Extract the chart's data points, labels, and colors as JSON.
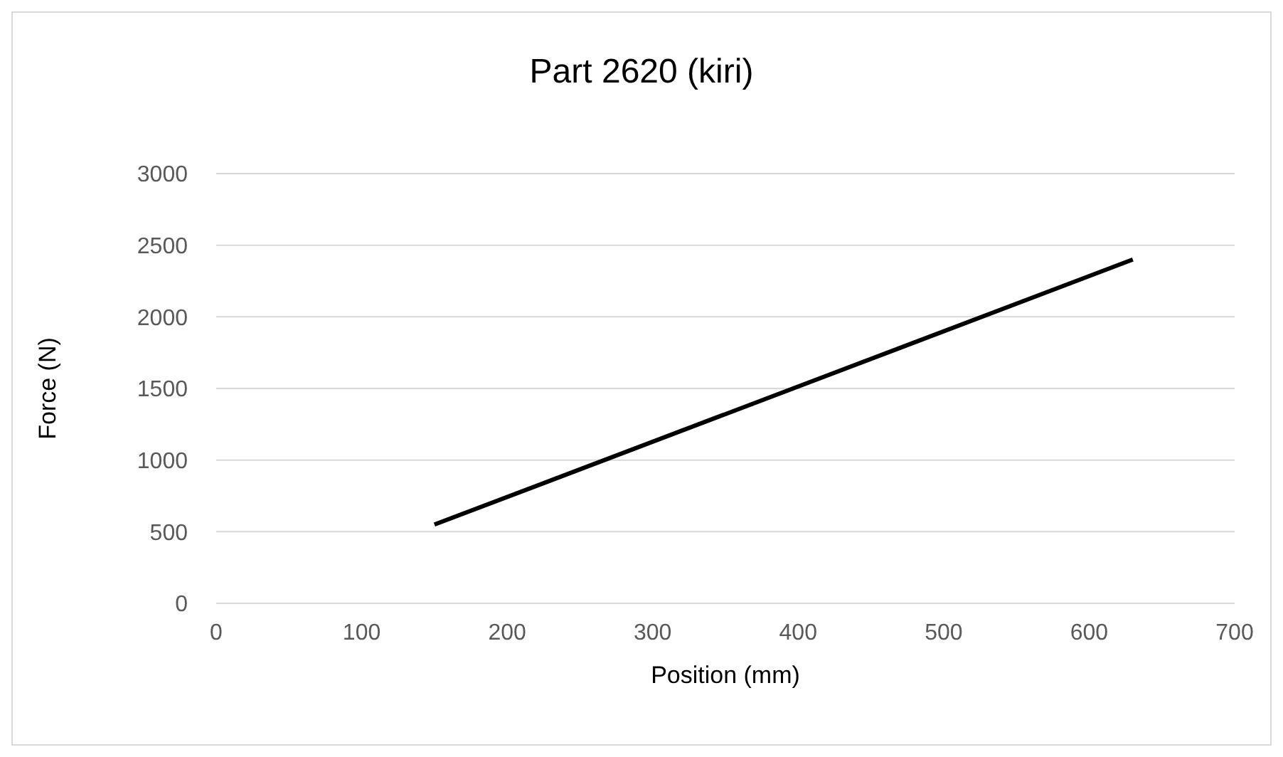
{
  "chart_data": {
    "type": "line",
    "title": "Part 2620 (kiri)",
    "xlabel": "Position (mm)",
    "ylabel": "Force (N)",
    "x": [
      150,
      630
    ],
    "series": [
      {
        "color": "#000000",
        "values": [
          550,
          2400
        ]
      }
    ],
    "xlim": [
      0,
      700
    ],
    "xticks": [
      0,
      100,
      200,
      300,
      400,
      500,
      600,
      700
    ],
    "ylim": [
      0,
      3000
    ],
    "yticks": [
      0,
      500,
      1000,
      1500,
      2000,
      2500,
      3000
    ],
    "grid": "y",
    "legend": false,
    "marker": "none",
    "line_style": "solid"
  }
}
